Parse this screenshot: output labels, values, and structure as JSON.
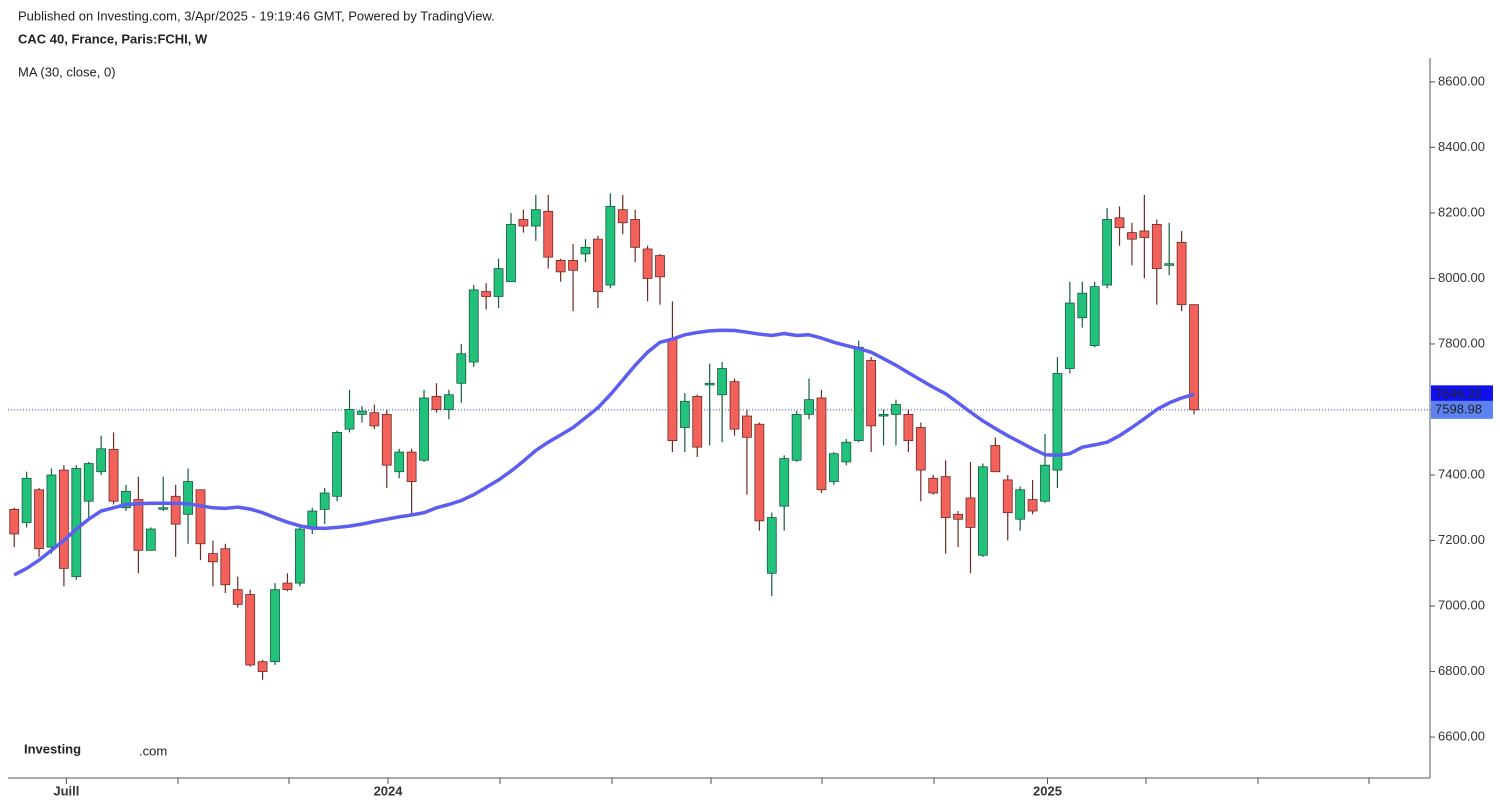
{
  "header": "Published on Investing.com, 3/Apr/2025 - 19:19:46 GMT, Powered by TradingView.",
  "logo": {
    "name": "Investing",
    "suffix": ".com"
  },
  "chart_data": {
    "type": "candlestick",
    "title": "CAC 40, France, Paris:FCHI, W",
    "indicator": "MA (30, close, 0)",
    "up_color": "#22c17c",
    "down_color": "#f2625b",
    "ma_color": "#5b5ef0",
    "ylim": [
      6475,
      8673
    ],
    "yticks": [
      {
        "value": 6600,
        "label": "6600.00"
      },
      {
        "value": 6800,
        "label": "6800.00"
      },
      {
        "value": 7000,
        "label": "7000.00"
      },
      {
        "value": 7200,
        "label": "7200.00"
      },
      {
        "value": 7400,
        "label": "7400.00"
      },
      {
        "value": 7600,
        "label": "7600.00"
      },
      {
        "value": 7800,
        "label": "7800.00"
      },
      {
        "value": 8000,
        "label": "8000.00"
      },
      {
        "value": 8200,
        "label": "8200.00"
      },
      {
        "value": 8400,
        "label": "8400.00"
      },
      {
        "value": 8600,
        "label": "8600.00"
      }
    ],
    "xlim": [
      -0.5,
      114
    ],
    "xticks": [
      {
        "value": 4.2,
        "label": "Juill"
      },
      {
        "value": 30.1,
        "label": "2024"
      },
      {
        "value": 83.2,
        "label": "2025"
      }
    ],
    "open": [
      7295,
      7255,
      7355,
      7180,
      7415,
      7090,
      7320,
      7410,
      7478,
      7300,
      7325,
      7170,
      7298,
      7335,
      7280,
      7355,
      7160,
      7175,
      7050,
      7035,
      6830,
      6830,
      7070,
      7070,
      7240,
      7295,
      7335,
      7540,
      7585,
      7590,
      7585,
      7410,
      7470,
      7445,
      7640,
      7600,
      7680,
      7745,
      7960,
      7945,
      7990,
      8180,
      8160,
      8205,
      8055,
      8055,
      8075,
      8120,
      7980,
      8210,
      8180,
      8090,
      8070,
      7815,
      7545,
      7640,
      7675,
      7645,
      7685,
      7580,
      7555,
      7100,
      7305,
      7445,
      7585,
      7635,
      7380,
      7440,
      7505,
      7750,
      7580,
      7585,
      7585,
      7545,
      7390,
      7395,
      7280,
      7330,
      7155,
      7490,
      7385,
      7265,
      7325,
      7320,
      7415,
      7725,
      7880,
      7795,
      7980,
      8185,
      8140,
      8145,
      8165,
      8040,
      8110,
      7920
    ],
    "high": [
      7300,
      7410,
      7360,
      7420,
      7430,
      7430,
      7440,
      7520,
      7530,
      7370,
      7395,
      7240,
      7395,
      7370,
      7420,
      7355,
      7200,
      7190,
      7090,
      7050,
      6835,
      7070,
      7100,
      7240,
      7300,
      7360,
      7535,
      7660,
      7610,
      7615,
      7600,
      7480,
      7480,
      7660,
      7680,
      7660,
      7800,
      7980,
      7985,
      8060,
      8200,
      8210,
      8255,
      8255,
      8060,
      8105,
      8120,
      8130,
      8260,
      8255,
      8210,
      8100,
      8075,
      7930,
      7650,
      7645,
      7740,
      7745,
      7695,
      7600,
      7560,
      7285,
      7460,
      7595,
      7695,
      7660,
      7470,
      7510,
      7810,
      7760,
      7600,
      7630,
      7600,
      7560,
      7400,
      7445,
      7290,
      7440,
      7435,
      7515,
      7400,
      7365,
      7385,
      7525,
      7760,
      7990,
      7990,
      7990,
      8215,
      8220,
      8170,
      8255,
      8180,
      8170,
      8145,
      7920
    ],
    "low": [
      7180,
      7240,
      7150,
      7160,
      7060,
      7080,
      7270,
      7400,
      7310,
      7290,
      7100,
      7170,
      7290,
      7150,
      7190,
      7140,
      7060,
      7040,
      6995,
      6815,
      6775,
      6820,
      7045,
      7060,
      7220,
      7250,
      7320,
      7530,
      7560,
      7540,
      7360,
      7390,
      7280,
      7440,
      7590,
      7570,
      7620,
      7730,
      7905,
      7910,
      7990,
      8140,
      8115,
      8030,
      7990,
      7900,
      8050,
      7910,
      7970,
      8135,
      8050,
      7930,
      7920,
      7470,
      7470,
      7455,
      7490,
      7500,
      7520,
      7340,
      7230,
      7030,
      7230,
      7440,
      7570,
      7345,
      7370,
      7430,
      7500,
      7470,
      7490,
      7490,
      7470,
      7320,
      7340,
      7160,
      7180,
      7100,
      7150,
      7410,
      7200,
      7230,
      7280,
      7315,
      7360,
      7710,
      7850,
      7790,
      7970,
      8100,
      8040,
      8000,
      7920,
      8010,
      7900,
      7585
    ],
    "close": [
      7220,
      7390,
      7175,
      7400,
      7115,
      7420,
      7435,
      7480,
      7320,
      7350,
      7170,
      7235,
      7300,
      7250,
      7380,
      7190,
      7135,
      7065,
      7005,
      6820,
      6800,
      7050,
      7050,
      7235,
      7290,
      7345,
      7530,
      7600,
      7595,
      7550,
      7430,
      7470,
      7380,
      7635,
      7600,
      7645,
      7770,
      7965,
      7945,
      8030,
      8165,
      8160,
      8210,
      8065,
      8020,
      8025,
      8095,
      7960,
      8220,
      8170,
      8095,
      8000,
      8005,
      7505,
      7625,
      7485,
      7680,
      7725,
      7540,
      7515,
      7260,
      7270,
      7450,
      7585,
      7630,
      7355,
      7465,
      7500,
      7790,
      7550,
      7585,
      7615,
      7505,
      7415,
      7345,
      7270,
      7265,
      7240,
      7425,
      7410,
      7285,
      7355,
      7290,
      7430,
      7710,
      7925,
      7955,
      7975,
      8180,
      8155,
      8120,
      8125,
      8030,
      8045,
      7920,
      7598.98
    ],
    "ma": [
      7095,
      7115,
      7140,
      7170,
      7200,
      7235,
      7265,
      7290,
      7300,
      7310,
      7312,
      7314,
      7314,
      7314,
      7312,
      7306,
      7300,
      7298,
      7302,
      7296,
      7285,
      7270,
      7256,
      7245,
      7238,
      7237,
      7240,
      7244,
      7250,
      7258,
      7265,
      7272,
      7278,
      7285,
      7300,
      7310,
      7322,
      7340,
      7362,
      7385,
      7412,
      7442,
      7475,
      7500,
      7522,
      7545,
      7575,
      7605,
      7645,
      7690,
      7735,
      7775,
      7805,
      7815,
      7828,
      7835,
      7840,
      7842,
      7841,
      7836,
      7830,
      7826,
      7832,
      7826,
      7828,
      7818,
      7805,
      7795,
      7786,
      7775,
      7755,
      7735,
      7712,
      7690,
      7668,
      7648,
      7620,
      7592,
      7565,
      7542,
      7520,
      7500,
      7480,
      7462,
      7460,
      7465,
      7485,
      7492,
      7500,
      7520,
      7545,
      7572,
      7600,
      7620,
      7635,
      7646.22
    ]
  }
}
